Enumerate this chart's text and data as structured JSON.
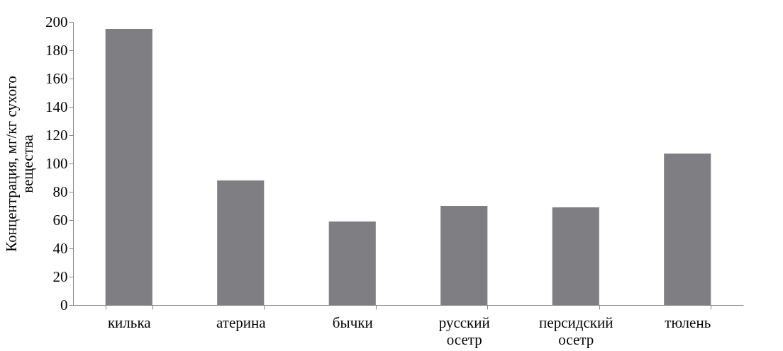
{
  "chart_data": {
    "type": "bar",
    "ylabel": "Концентрация, мг/кг сухого вещества",
    "categories": [
      "килька",
      "атерина",
      "бычки",
      "русский осетр",
      "персидский осетр",
      "тюлень"
    ],
    "values": [
      195,
      88,
      59,
      70,
      69,
      107
    ],
    "color": "#7f7f83",
    "ylim": [
      0,
      200
    ],
    "yticks": [
      0,
      20,
      40,
      60,
      80,
      100,
      120,
      140,
      160,
      180,
      200
    ],
    "grid": false
  }
}
